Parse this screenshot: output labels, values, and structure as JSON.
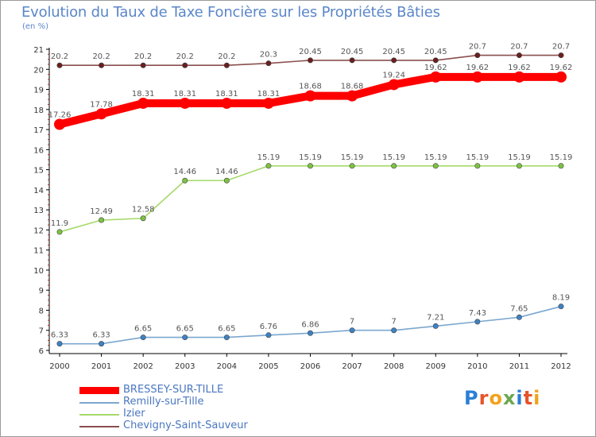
{
  "title": "Evolution du Taux de Taxe Foncière sur les Propriétés Bâties",
  "subtitle": "(en %)",
  "logo": {
    "text": "Proxiti",
    "letter_colors": [
      "#2a7fd6",
      "#e8542a",
      "#f2a21a",
      "#6aa84f",
      "#2a7fd6",
      "#e8542a",
      "#f2a21a"
    ]
  },
  "chart_data": {
    "type": "line",
    "x": [
      "2000",
      "2001",
      "2002",
      "2003",
      "2004",
      "2005",
      "2006",
      "2007",
      "2008",
      "2009",
      "2010",
      "2011",
      "2012"
    ],
    "ylim": [
      6,
      21
    ],
    "yticks": [
      6,
      7,
      8,
      9,
      10,
      11,
      12,
      13,
      14,
      15,
      16,
      17,
      18,
      19,
      20,
      21
    ],
    "grid": false,
    "legend_position": "bottom-left",
    "series": [
      {
        "name": "BRESSEY-SUR-TILLE",
        "color": "#ff0000",
        "marker_color": "#ff0000",
        "emphasis": true,
        "values": [
          17.26,
          17.78,
          18.31,
          18.31,
          18.31,
          18.31,
          18.68,
          18.68,
          19.24,
          19.62,
          19.62,
          19.62,
          19.62
        ],
        "labels": [
          "17.26",
          "17.78",
          "18.31",
          "18.31",
          "18.31",
          "18.31",
          "18.68",
          "18.68",
          "19.24",
          "19.62",
          "19.62",
          "19.62",
          "19.62"
        ]
      },
      {
        "name": "Remilly-sur-Tille",
        "color": "#7ba7cf",
        "marker_color": "#3d82c4",
        "emphasis": false,
        "values": [
          6.33,
          6.33,
          6.65,
          6.65,
          6.65,
          6.76,
          6.86,
          7,
          7,
          7.21,
          7.43,
          7.65,
          8.19
        ],
        "labels": [
          "6.33",
          "6.33",
          "6.65",
          "6.65",
          "6.65",
          "6.76",
          "6.86",
          "7",
          "7",
          "7.21",
          "7.43",
          "7.65",
          "8.19"
        ]
      },
      {
        "name": "Izier",
        "color": "#a6d96a",
        "marker_color": "#7cc242",
        "emphasis": false,
        "values": [
          11.9,
          12.49,
          12.58,
          14.46,
          14.46,
          15.19,
          15.19,
          15.19,
          15.19,
          15.19,
          15.19,
          15.19,
          15.19
        ],
        "labels": [
          "11.9",
          "12.49",
          "12.58",
          "14.46",
          "14.46",
          "15.19",
          "15.19",
          "15.19",
          "15.19",
          "15.19",
          "15.19",
          "15.19",
          "15.19"
        ]
      },
      {
        "name": "Chevigny-Saint-Sauveur",
        "color": "#8b4f4f",
        "marker_color": "#6a1f1f",
        "emphasis": false,
        "values": [
          20.2,
          20.2,
          20.2,
          20.2,
          20.2,
          20.3,
          20.45,
          20.45,
          20.45,
          20.45,
          20.7,
          20.7,
          20.7
        ],
        "labels": [
          "20.2",
          "20.2",
          "20.2",
          "20.2",
          "20.2",
          "20.3",
          "20.45",
          "20.45",
          "20.45",
          "20.45",
          "20.7",
          "20.7",
          "20.7"
        ]
      }
    ]
  }
}
